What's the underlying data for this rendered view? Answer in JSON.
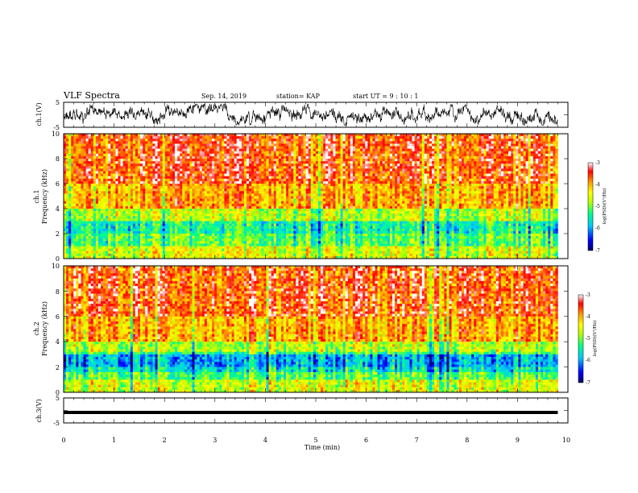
{
  "header": {
    "title": "VLF Spectra",
    "date": "Sep. 14, 2019",
    "station": "station= KAP",
    "start": "start  UT =   9 : 10 : 1"
  },
  "chart_data": [
    {
      "type": "line",
      "panel": "ch1-waveform",
      "ylabel": "ch.1(V)",
      "ylim": [
        -5,
        5
      ],
      "yticks": [
        "5",
        "-5"
      ],
      "xlim": [
        0,
        10
      ],
      "color": "#000000"
    },
    {
      "type": "heatmap",
      "panel": "ch1-spectrogram",
      "ylabel_line1": "ch.1",
      "ylabel_line2": "Frequency (kHz)",
      "ylim": [
        0,
        10
      ],
      "yticks": [
        "0",
        "2",
        "4",
        "6",
        "8",
        "10"
      ],
      "xlim": [
        0,
        10
      ],
      "colorbar": {
        "label": "log(PSD)(V²/Hz)",
        "range": [
          -7,
          -3
        ],
        "ticks": [
          "-3",
          "-4",
          "-5",
          "-6",
          "-7"
        ],
        "colors": [
          "#000066",
          "#0000ff",
          "#00c8ff",
          "#00ff88",
          "#b4ff00",
          "#ffff00",
          "#ff9900",
          "#ff0000",
          "#ffffff"
        ]
      }
    },
    {
      "type": "heatmap",
      "panel": "ch2-spectrogram",
      "ylabel_line1": "ch.2",
      "ylabel_line2": "Frequency (kHz)",
      "ylim": [
        0,
        10
      ],
      "yticks": [
        "0",
        "2",
        "4",
        "6",
        "8",
        "10"
      ],
      "xlim": [
        0,
        10
      ],
      "colorbar": {
        "label": "log(PSD)(V²/Hz)",
        "range": [
          -7,
          -3
        ],
        "ticks": [
          "-3",
          "-4",
          "-5",
          "-6",
          "-7"
        ],
        "colors": [
          "#000066",
          "#0000ff",
          "#00c8ff",
          "#00ff88",
          "#b4ff00",
          "#ffff00",
          "#ff9900",
          "#ff0000",
          "#ffffff"
        ]
      }
    },
    {
      "type": "line",
      "panel": "ch3-waveform",
      "ylabel": "ch.3(V)",
      "ylim": [
        -5,
        5
      ],
      "yticks": [
        "5",
        "-5"
      ],
      "y_constant": -0.8,
      "xlim": [
        0,
        10
      ],
      "xlabel": "Time  (min)",
      "xticks": [
        "0",
        "1",
        "2",
        "3",
        "4",
        "5",
        "6",
        "7",
        "8",
        "9",
        "10"
      ],
      "color": "#000000"
    }
  ]
}
